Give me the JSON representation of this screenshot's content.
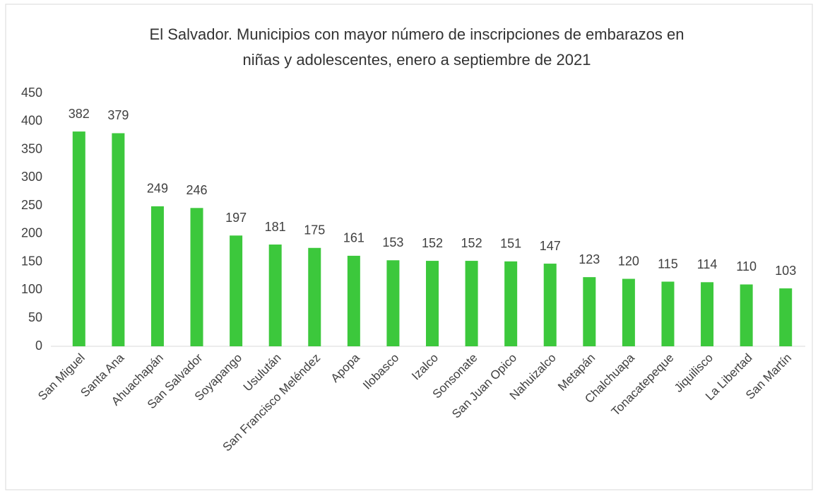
{
  "chart_data": {
    "type": "bar",
    "title": [
      "El Salvador. Municipios con mayor número de inscripciones de embarazos en",
      "niñas y adolescentes, enero a septiembre de 2021"
    ],
    "categories": [
      "San Miguel",
      "Santa Ana",
      "Ahuachapán",
      "San Salvador",
      "Soyapango",
      "Usulután",
      "San Francisco Meléndez",
      "Apopa",
      "Ilobasco",
      "Izalco",
      "Sonsonate",
      "San Juan Opico",
      "Nahuizalco",
      "Metapán",
      "Chalchuapa",
      "Tonacatepeque",
      "Jiquilisco",
      "La Libertad",
      "San Martín"
    ],
    "values": [
      382,
      379,
      249,
      246,
      197,
      181,
      175,
      161,
      153,
      152,
      152,
      151,
      147,
      123,
      120,
      115,
      114,
      110,
      103
    ],
    "color": "#3cc83c",
    "ylim": [
      0,
      450
    ],
    "yticks": [
      0,
      50,
      100,
      150,
      200,
      250,
      300,
      350,
      400,
      450
    ],
    "grid": false
  }
}
